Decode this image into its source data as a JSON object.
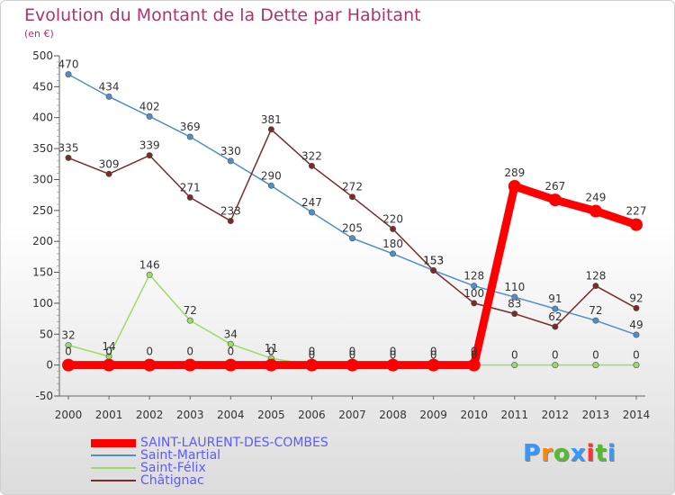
{
  "chart_data": {
    "type": "line",
    "title": "Evolution du Montant de la Dette par Habitant",
    "subtitle": "(en €)",
    "ylim": [
      -50,
      500
    ],
    "yticks": [
      -50,
      0,
      50,
      100,
      150,
      200,
      250,
      300,
      350,
      400,
      450,
      500
    ],
    "x": [
      "2000",
      "2001",
      "2002",
      "2003",
      "2004",
      "2005",
      "2006",
      "2007",
      "2008",
      "2009",
      "2010",
      "2011",
      "2012",
      "2013",
      "2014"
    ],
    "grid": false,
    "legend": "bottom-left",
    "series": [
      {
        "name": "SAINT-LAURENT-DES-COMBES",
        "color": "#ff0000",
        "emphasis": true,
        "values": [
          0,
          0,
          0,
          0,
          0,
          0,
          0,
          0,
          0,
          0,
          0,
          289,
          267,
          249,
          227
        ]
      },
      {
        "name": "Saint-Martial",
        "color": "#4f8fc9",
        "values": [
          470,
          434,
          402,
          369,
          330,
          290,
          247,
          205,
          180,
          153,
          128,
          110,
          91,
          72,
          49
        ]
      },
      {
        "name": "Saint-Félix",
        "color": "#99dd66",
        "values": [
          32,
          14,
          146,
          72,
          34,
          11,
          0,
          0,
          0,
          0,
          0,
          0,
          0,
          0,
          0
        ]
      },
      {
        "name": "Châtignac",
        "color": "#7a2a2a",
        "values": [
          335,
          309,
          339,
          271,
          233,
          381,
          322,
          272,
          220,
          153,
          100,
          83,
          62,
          128,
          92
        ]
      }
    ]
  },
  "logo": {
    "text": "Proxiti",
    "colors": [
      "#3399ff",
      "#ff8800",
      "#55bb33",
      "#3399ff",
      "#ff3333",
      "#55bb33",
      "#3399ff"
    ]
  }
}
